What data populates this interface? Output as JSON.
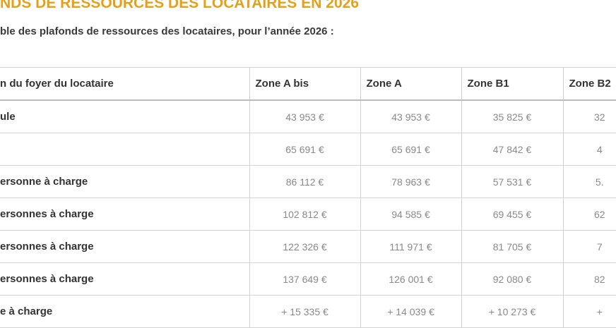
{
  "header": {
    "title": "NDS DE RESSOURCES DES LOCATAIRES EN 2026",
    "subtitle": "ble des plafonds de ressources des locataires, pour l’année 2026 :"
  },
  "table": {
    "columns": [
      "n du foyer du locataire",
      "Zone A bis",
      "Zone A",
      "Zone B1",
      "Zone B2"
    ],
    "rows": [
      [
        "ule",
        "43 953 €",
        "43 953 €",
        "35 825 €",
        "32"
      ],
      [
        null,
        "65 691 €",
        "65 691 €",
        "47 842 €",
        "4"
      ],
      [
        "ersonne à charge",
        "86 112 €",
        "78 963 €",
        "57 531 €",
        "5."
      ],
      [
        "ersonnes à charge",
        "102 812 €",
        "94 585 €",
        "69 455 €",
        "62"
      ],
      [
        "ersonnes à charge",
        "122 326 €",
        "111 971 €",
        "81 705 €",
        "7"
      ],
      [
        "ersonnes à charge",
        "137 649 €",
        "126 001 €",
        "92 080 €",
        "82"
      ],
      [
        "e à charge",
        "+ 15 335 €",
        "+ 14 039 €",
        "+ 10 273 €",
        "+"
      ]
    ]
  }
}
